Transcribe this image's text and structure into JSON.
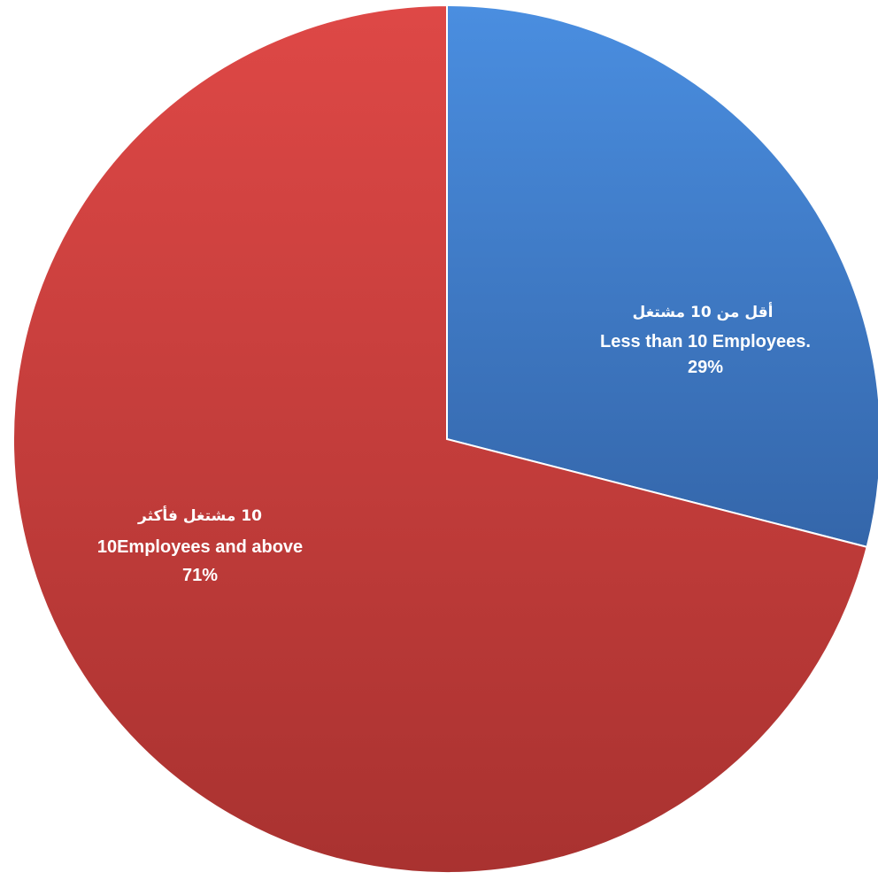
{
  "chart_data": {
    "type": "pie",
    "slices": [
      {
        "label_ar": "أقل من 10 مشتغل",
        "label_en": "Less than 10 Employees.",
        "percent_label": "29%",
        "value": 29,
        "color": "#3f79c4"
      },
      {
        "label_ar": "10 مشتغل فأكثر",
        "label_en": "10Employees and above",
        "percent_label": "71%",
        "value": 71,
        "color": "#c9403d"
      }
    ],
    "start_angle_deg": 0,
    "direction": "clockwise",
    "legend": "none",
    "data_labels": "inside"
  }
}
